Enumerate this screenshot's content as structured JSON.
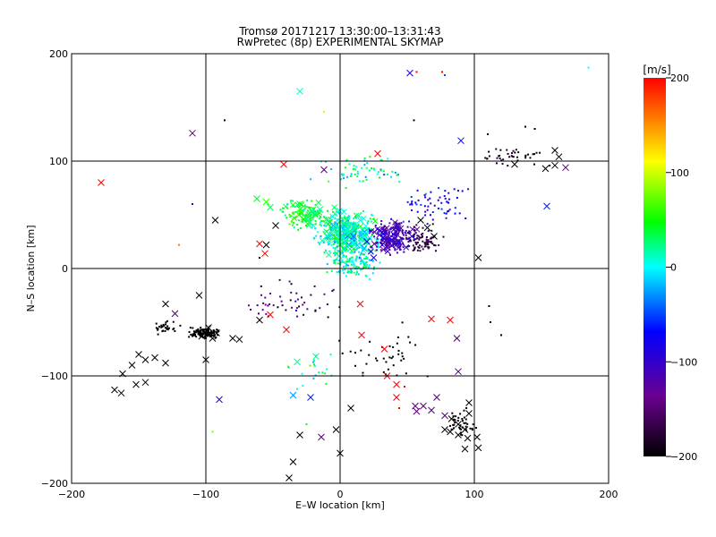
{
  "chart_data": {
    "type": "scatter",
    "title": "Tromsø 20171217 13:30:00–13:31:43",
    "subtitle": "RwPretec (8p) EXPERIMENTAL SKYMAP",
    "xlabel": "E–W location [km]",
    "ylabel": "N–S location [km]",
    "xlim": [
      -200,
      200
    ],
    "ylim": [
      -200,
      200
    ],
    "x_ticks": [
      -200,
      -100,
      0,
      100,
      200
    ],
    "y_ticks": [
      -200,
      -100,
      0,
      100,
      200
    ],
    "x_tick_labels": [
      "−200",
      "−100",
      "0",
      "100",
      "200"
    ],
    "y_tick_labels": [
      "−200",
      "−100",
      "0",
      "100",
      "200"
    ],
    "gridlines_x": [
      -100,
      0,
      100
    ],
    "gridlines_y": [
      -100,
      0,
      100
    ],
    "grid": true,
    "colorbar": {
      "label": "[m/s]",
      "range": [
        -200,
        200
      ],
      "ticks": [
        200,
        100,
        0,
        -100,
        -200
      ],
      "tick_labels": [
        "200",
        "100",
        "0",
        "−100",
        "−200"
      ],
      "colormap": [
        "#000000",
        "#6a0090",
        "#0000ff",
        "#00ffff",
        "#00ff00",
        "#ffff00",
        "#ff0000"
      ]
    },
    "markers": [
      {
        "x": -178,
        "y": 80,
        "v": 200
      },
      {
        "x": -110,
        "y": 126,
        "v": -150
      },
      {
        "x": -30,
        "y": 165,
        "v": 10
      },
      {
        "x": 52,
        "y": 182,
        "v": -90
      },
      {
        "x": 90,
        "y": 119,
        "v": -70
      },
      {
        "x": 28,
        "y": 107,
        "v": 200
      },
      {
        "x": -42,
        "y": 97,
        "v": 200
      },
      {
        "x": -12,
        "y": 92,
        "v": -150
      },
      {
        "x": 160,
        "y": 110,
        "v": -200
      },
      {
        "x": 163,
        "y": 104,
        "v": -200
      },
      {
        "x": 160,
        "y": 96,
        "v": -200
      },
      {
        "x": 168,
        "y": 94,
        "v": -150
      },
      {
        "x": 153,
        "y": 93,
        "v": -200
      },
      {
        "x": 130,
        "y": 97,
        "v": -200
      },
      {
        "x": 103,
        "y": 10,
        "v": -200
      },
      {
        "x": 154,
        "y": 58,
        "v": -60
      },
      {
        "x": -93,
        "y": 45,
        "v": -200
      },
      {
        "x": -62,
        "y": 65,
        "v": 40
      },
      {
        "x": -55,
        "y": 62,
        "v": 60
      },
      {
        "x": -52,
        "y": 57,
        "v": 30
      },
      {
        "x": -30,
        "y": 60,
        "v": 40
      },
      {
        "x": -25,
        "y": 47,
        "v": 0
      },
      {
        "x": -15,
        "y": 55,
        "v": 20
      },
      {
        "x": -5,
        "y": 40,
        "v": -20
      },
      {
        "x": -48,
        "y": 40,
        "v": -200
      },
      {
        "x": -55,
        "y": 22,
        "v": -200
      },
      {
        "x": -56,
        "y": 14,
        "v": 200
      },
      {
        "x": -60,
        "y": 23,
        "v": 200
      },
      {
        "x": 5,
        "y": 35,
        "v": 10
      },
      {
        "x": 10,
        "y": 30,
        "v": -40
      },
      {
        "x": 20,
        "y": 25,
        "v": -90
      },
      {
        "x": 30,
        "y": 35,
        "v": -100
      },
      {
        "x": 42,
        "y": 40,
        "v": -120
      },
      {
        "x": 60,
        "y": 45,
        "v": -200
      },
      {
        "x": 65,
        "y": 38,
        "v": -200
      },
      {
        "x": 70,
        "y": 30,
        "v": -200
      },
      {
        "x": 35,
        "y": 20,
        "v": -110
      },
      {
        "x": 15,
        "y": 45,
        "v": 0
      },
      {
        "x": 0,
        "y": 22,
        "v": 40
      },
      {
        "x": -10,
        "y": 30,
        "v": 20
      },
      {
        "x": -20,
        "y": 40,
        "v": 0
      },
      {
        "x": 25,
        "y": 10,
        "v": -80
      },
      {
        "x": -130,
        "y": -33,
        "v": -200
      },
      {
        "x": -123,
        "y": -42,
        "v": -150
      },
      {
        "x": -105,
        "y": -25,
        "v": -200
      },
      {
        "x": -98,
        "y": -55,
        "v": -200
      },
      {
        "x": -92,
        "y": -60,
        "v": -200
      },
      {
        "x": -103,
        "y": -63,
        "v": -200
      },
      {
        "x": -95,
        "y": -65,
        "v": -200
      },
      {
        "x": -80,
        "y": -65,
        "v": -200
      },
      {
        "x": -75,
        "y": -66,
        "v": -200
      },
      {
        "x": -100,
        "y": -85,
        "v": -200
      },
      {
        "x": -150,
        "y": -80,
        "v": -200
      },
      {
        "x": -145,
        "y": -85,
        "v": -200
      },
      {
        "x": -138,
        "y": -83,
        "v": -200
      },
      {
        "x": -130,
        "y": -88,
        "v": -200
      },
      {
        "x": -155,
        "y": -90,
        "v": -200
      },
      {
        "x": -162,
        "y": -98,
        "v": -200
      },
      {
        "x": -152,
        "y": -108,
        "v": -200
      },
      {
        "x": -145,
        "y": -106,
        "v": -200
      },
      {
        "x": -168,
        "y": -113,
        "v": -200
      },
      {
        "x": -163,
        "y": -116,
        "v": -200
      },
      {
        "x": -60,
        "y": -48,
        "v": -200
      },
      {
        "x": -52,
        "y": -43,
        "v": 200
      },
      {
        "x": -40,
        "y": -57,
        "v": 200
      },
      {
        "x": -32,
        "y": -87,
        "v": 20
      },
      {
        "x": -18,
        "y": -82,
        "v": 20
      },
      {
        "x": -35,
        "y": -118,
        "v": -30
      },
      {
        "x": -22,
        "y": -120,
        "v": -60
      },
      {
        "x": -90,
        "y": -122,
        "v": -90
      },
      {
        "x": 15,
        "y": -33,
        "v": 200
      },
      {
        "x": 16,
        "y": -62,
        "v": 200
      },
      {
        "x": 33,
        "y": -75,
        "v": 200
      },
      {
        "x": 35,
        "y": -100,
        "v": 200
      },
      {
        "x": 42,
        "y": -108,
        "v": 200
      },
      {
        "x": 42,
        "y": -120,
        "v": 200
      },
      {
        "x": 68,
        "y": -47,
        "v": 200
      },
      {
        "x": 82,
        "y": -48,
        "v": 200
      },
      {
        "x": 87,
        "y": -65,
        "v": -150
      },
      {
        "x": 88,
        "y": -96,
        "v": -150
      },
      {
        "x": 56,
        "y": -128,
        "v": -150
      },
      {
        "x": 57,
        "y": -133,
        "v": -150
      },
      {
        "x": 62,
        "y": -128,
        "v": -150
      },
      {
        "x": 68,
        "y": -132,
        "v": -150
      },
      {
        "x": 72,
        "y": -120,
        "v": -150
      },
      {
        "x": 78,
        "y": -137,
        "v": -150
      },
      {
        "x": 83,
        "y": -140,
        "v": -200
      },
      {
        "x": 88,
        "y": -145,
        "v": -200
      },
      {
        "x": 82,
        "y": -152,
        "v": -200
      },
      {
        "x": 88,
        "y": -155,
        "v": -200
      },
      {
        "x": 93,
        "y": -150,
        "v": -200
      },
      {
        "x": 95,
        "y": -158,
        "v": -200
      },
      {
        "x": 93,
        "y": -168,
        "v": -200
      },
      {
        "x": 96,
        "y": -135,
        "v": -200
      },
      {
        "x": 96,
        "y": -125,
        "v": -200
      },
      {
        "x": 102,
        "y": -157,
        "v": -200
      },
      {
        "x": 103,
        "y": -167,
        "v": -200
      },
      {
        "x": 78,
        "y": -150,
        "v": -200
      },
      {
        "x": -3,
        "y": -150,
        "v": -200
      },
      {
        "x": 0,
        "y": -172,
        "v": -200
      },
      {
        "x": 8,
        "y": -130,
        "v": -200
      },
      {
        "x": -30,
        "y": -155,
        "v": -200
      },
      {
        "x": -35,
        "y": -180,
        "v": -200
      },
      {
        "x": -38,
        "y": -195,
        "v": -200
      },
      {
        "x": -14,
        "y": -157,
        "v": -150
      }
    ],
    "dots": [
      {
        "x": 185,
        "y": 187,
        "v": 0
      },
      {
        "x": 76,
        "y": 183,
        "v": 200
      },
      {
        "x": 57,
        "y": 183,
        "v": 200
      },
      {
        "x": 78,
        "y": 180,
        "v": -50
      },
      {
        "x": -86,
        "y": 138,
        "v": -200
      },
      {
        "x": 55,
        "y": 138,
        "v": -200
      },
      {
        "x": -12,
        "y": 146,
        "v": 100
      },
      {
        "x": 138,
        "y": 132,
        "v": -200
      },
      {
        "x": 145,
        "y": 130,
        "v": -200
      },
      {
        "x": 110,
        "y": 125,
        "v": -200
      },
      {
        "x": -110,
        "y": 60,
        "v": -80
      },
      {
        "x": -120,
        "y": 22,
        "v": 160
      },
      {
        "x": -60,
        "y": 10,
        "v": -200
      },
      {
        "x": 120,
        "y": -62,
        "v": -200
      },
      {
        "x": 112,
        "y": -50,
        "v": -200
      },
      {
        "x": 111,
        "y": -35,
        "v": -200
      },
      {
        "x": -95,
        "y": -152,
        "v": 80
      },
      {
        "x": -25,
        "y": -145,
        "v": 40
      },
      {
        "x": 44,
        "y": -130,
        "v": 200
      },
      {
        "x": 48,
        "y": -110,
        "v": 200
      }
    ],
    "clusters": [
      {
        "cx": 5,
        "cy": 32,
        "rx": 28,
        "ry": 28,
        "n": 420,
        "v": 10,
        "vspread": 60,
        "marker": "mix"
      },
      {
        "cx": -25,
        "cy": 50,
        "rx": 25,
        "ry": 18,
        "n": 120,
        "v": 40,
        "vspread": 50,
        "marker": "mix"
      },
      {
        "cx": 40,
        "cy": 30,
        "rx": 22,
        "ry": 20,
        "n": 200,
        "v": -110,
        "vspread": 40,
        "marker": "mix"
      },
      {
        "cx": 60,
        "cy": 25,
        "rx": 18,
        "ry": 18,
        "n": 80,
        "v": -170,
        "vspread": 30,
        "marker": "dot"
      },
      {
        "cx": 10,
        "cy": 5,
        "rx": 25,
        "ry": 18,
        "n": 130,
        "v": 10,
        "vspread": 60,
        "marker": "dot"
      },
      {
        "cx": 70,
        "cy": 60,
        "rx": 40,
        "ry": 25,
        "n": 60,
        "v": -80,
        "vspread": 60,
        "marker": "dot"
      },
      {
        "cx": 20,
        "cy": 90,
        "rx": 45,
        "ry": 20,
        "n": 60,
        "v": 20,
        "vspread": 90,
        "marker": "dot"
      },
      {
        "cx": -40,
        "cy": -30,
        "rx": 45,
        "ry": 25,
        "n": 50,
        "v": -150,
        "vspread": 80,
        "marker": "dot"
      },
      {
        "cx": -100,
        "cy": -60,
        "rx": 18,
        "ry": 8,
        "n": 110,
        "v": -200,
        "vspread": 0,
        "marker": "dot"
      },
      {
        "cx": -130,
        "cy": -55,
        "rx": 15,
        "ry": 10,
        "n": 30,
        "v": -200,
        "vspread": 0,
        "marker": "dot"
      },
      {
        "cx": 130,
        "cy": 105,
        "rx": 30,
        "ry": 12,
        "n": 40,
        "v": -190,
        "vspread": 30,
        "marker": "dot"
      },
      {
        "cx": 90,
        "cy": -145,
        "rx": 15,
        "ry": 20,
        "n": 40,
        "v": -200,
        "vspread": 0,
        "marker": "dot"
      },
      {
        "cx": 30,
        "cy": -80,
        "rx": 40,
        "ry": 35,
        "n": 40,
        "v": -200,
        "vspread": 0,
        "marker": "dot"
      },
      {
        "cx": -20,
        "cy": -95,
        "rx": 30,
        "ry": 30,
        "n": 20,
        "v": 20,
        "vspread": 60,
        "marker": "dot"
      }
    ]
  }
}
